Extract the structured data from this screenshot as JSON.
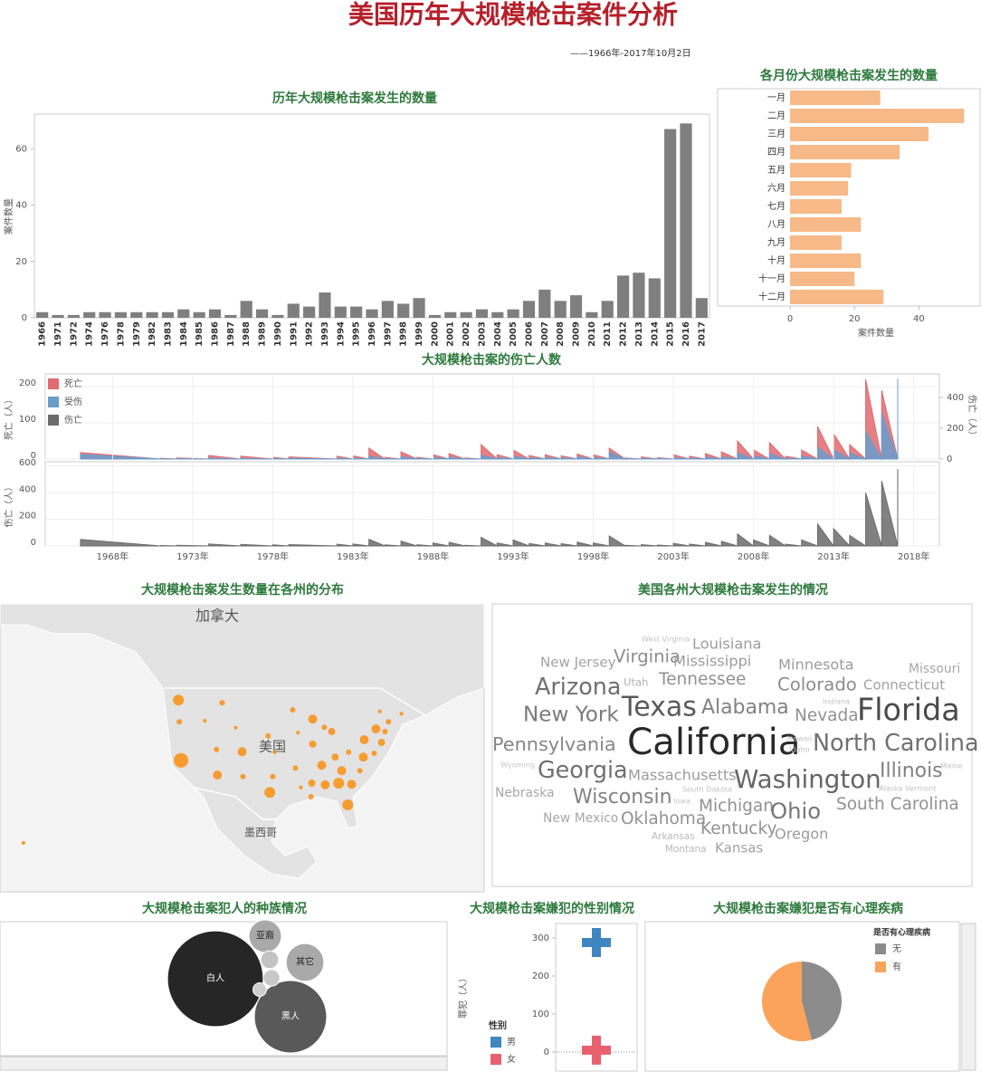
{
  "title": "美国历年大规模枪击案件分析",
  "subtitle": "——1966年-2017年10月2日",
  "chart_data": [
    {
      "type": "bar",
      "title": "历年大规模枪击案发生的数量",
      "ylabel": "案件数量",
      "color": "#7f7f7f",
      "categories": [
        "1966",
        "1971",
        "1972",
        "1974",
        "1976",
        "1978",
        "1979",
        "1982",
        "1983",
        "1984",
        "1985",
        "1986",
        "1987",
        "1988",
        "1989",
        "1990",
        "1991",
        "1992",
        "1993",
        "1994",
        "1995",
        "1996",
        "1997",
        "1998",
        "1999",
        "2000",
        "2001",
        "2002",
        "2003",
        "2004",
        "2005",
        "2006",
        "2007",
        "2008",
        "2009",
        "2010",
        "2011",
        "2012",
        "2013",
        "2014",
        "2015",
        "2016",
        "2017"
      ],
      "values": [
        2,
        1,
        1,
        2,
        2,
        2,
        2,
        2,
        2,
        3,
        2,
        3,
        1,
        6,
        3,
        1,
        5,
        4,
        9,
        4,
        4,
        3,
        6,
        5,
        7,
        1,
        2,
        2,
        3,
        2,
        3,
        6,
        10,
        6,
        8,
        2,
        6,
        15,
        16,
        14,
        67,
        69,
        7
      ],
      "ylim": [
        0,
        72
      ],
      "yticks": [
        0,
        20,
        40,
        60
      ]
    },
    {
      "type": "hbar",
      "title": "各月份大规模枪击案发生的数量",
      "xlabel": "案件数量",
      "color": "#f6b987",
      "categories": [
        "一月",
        "二月",
        "三月",
        "四月",
        "五月",
        "六月",
        "七月",
        "八月",
        "九月",
        "十月",
        "十一月",
        "十二月"
      ],
      "values": [
        28,
        54,
        43,
        34,
        19,
        18,
        16,
        22,
        16,
        22,
        20,
        29
      ],
      "xlim": [
        0,
        59
      ],
      "xticks": [
        0,
        20,
        40
      ]
    },
    {
      "type": "area",
      "title": "大规模枪击案的伤亡人数",
      "ylabel": "死亡（人）",
      "y2label": "伤亡（人）",
      "grid": true,
      "x": [
        1966,
        1971,
        1972,
        1974,
        1976,
        1978,
        1979,
        1982,
        1983,
        1984,
        1985,
        1986,
        1987,
        1988,
        1989,
        1990,
        1991,
        1992,
        1993,
        1994,
        1995,
        1996,
        1997,
        1998,
        1999,
        2000,
        2001,
        2002,
        2003,
        2004,
        2005,
        2006,
        2007,
        2008,
        2009,
        2010,
        2011,
        2012,
        2013,
        2014,
        2015,
        2016,
        2017
      ],
      "series": [
        {
          "name": "死亡",
          "color": "#e06a6f",
          "values": [
            18,
            2,
            3,
            10,
            8,
            5,
            6,
            8,
            9,
            30,
            5,
            20,
            5,
            12,
            15,
            3,
            40,
            12,
            25,
            10,
            12,
            9,
            14,
            12,
            30,
            3,
            6,
            4,
            12,
            8,
            15,
            20,
            50,
            25,
            45,
            8,
            25,
            90,
            70,
            40,
            220,
            190,
            60
          ]
        },
        {
          "name": "受伤",
          "color": "#6a9ccc",
          "axis": "y2",
          "values": [
            31,
            1,
            2,
            5,
            4,
            3,
            4,
            5,
            6,
            20,
            3,
            16,
            4,
            10,
            12,
            2,
            25,
            10,
            20,
            8,
            10,
            8,
            15,
            10,
            45,
            2,
            4,
            3,
            8,
            6,
            12,
            15,
            40,
            20,
            35,
            5,
            20,
            75,
            60,
            40,
            180,
            300,
            520
          ]
        }
      ],
      "xlim": [
        1963.8,
        2019.6
      ],
      "ylim": [
        0,
        230
      ],
      "yticks": [
        0,
        100,
        200
      ],
      "y2lim": [
        0,
        540
      ],
      "y2ticks": [
        0,
        200,
        400
      ]
    },
    {
      "type": "area",
      "ylabel": "伤亡（人）",
      "grid": true,
      "x": [
        1966,
        1971,
        1972,
        1974,
        1976,
        1978,
        1979,
        1982,
        1983,
        1984,
        1985,
        1986,
        1987,
        1988,
        1989,
        1990,
        1991,
        1992,
        1993,
        1994,
        1995,
        1996,
        1997,
        1998,
        1999,
        2000,
        2001,
        2002,
        2003,
        2004,
        2005,
        2006,
        2007,
        2008,
        2009,
        2010,
        2011,
        2012,
        2013,
        2014,
        2015,
        2016,
        2017
      ],
      "series": [
        {
          "name": "伤亡",
          "color": "#6b6b6b",
          "values": [
            49,
            3,
            5,
            15,
            12,
            8,
            10,
            13,
            15,
            50,
            8,
            36,
            9,
            22,
            27,
            5,
            65,
            22,
            45,
            18,
            22,
            17,
            29,
            22,
            75,
            5,
            10,
            7,
            20,
            14,
            27,
            35,
            90,
            45,
            80,
            13,
            45,
            165,
            130,
            80,
            400,
            490,
            580
          ]
        }
      ],
      "xlim": [
        1963.8,
        2019.6
      ],
      "ylim": [
        0,
        620
      ],
      "yticks": [
        0,
        200,
        400,
        600
      ],
      "xticks": [
        {
          "value": 1968,
          "label": "1968年"
        },
        {
          "value": 1973,
          "label": "1973年"
        },
        {
          "value": 1978,
          "label": "1978年"
        },
        {
          "value": 1983,
          "label": "1983年"
        },
        {
          "value": 1988,
          "label": "1988年"
        },
        {
          "value": 1993,
          "label": "1993年"
        },
        {
          "value": 1998,
          "label": "1998年"
        },
        {
          "value": 2003,
          "label": "2003年"
        },
        {
          "value": 2008,
          "label": "2008年"
        },
        {
          "value": 2013,
          "label": "2013年"
        },
        {
          "value": 2018,
          "label": "2018年"
        }
      ]
    },
    {
      "type": "bubble_map",
      "title": "大规模枪击案发生数量在各州的分布",
      "color": "#f7941d",
      "labels": [
        "加拿大",
        "美国",
        "墨西哥"
      ],
      "xlim": [
        -160.8,
        -49
      ],
      "ylim": [
        11.8,
        64.8
      ],
      "lon": [
        -119.6,
        -119.4,
        -119.0,
        -113.5,
        -109.5,
        -106.4,
        -110.8,
        -104.9,
        -110.6,
        -104.7,
        -98.5,
        -98.9,
        -97.4,
        -97.8,
        -93.2,
        -92.0,
        -88.6,
        -92.6,
        -91.3,
        -88.6,
        -86.5,
        -84.2,
        -83.4,
        -81.9,
        -80.3,
        -79.6,
        -82.6,
        -85.7,
        -88.8,
        -89.0,
        -76.9,
        -76.7,
        -77.7,
        -74.0,
        -74.4,
        -71.9,
        -72.7,
        -71.1,
        -68.1,
        -73.1,
        -80.5,
        -85.9,
        -155.4
      ],
      "lat": [
        47.1,
        43.1,
        36.0,
        43.3,
        46.6,
        42.0,
        38.0,
        37.6,
        33.3,
        33.0,
        30.1,
        40.5,
        37.5,
        33.0,
        45.3,
        41.1,
        43.6,
        34.6,
        31.0,
        39.0,
        35.1,
        41.3,
        36.6,
        34.1,
        37.5,
        31.6,
        31.8,
        31.5,
        31.8,
        29.3,
        36.6,
        39.8,
        34.1,
        41.8,
        37.3,
        41.3,
        39.3,
        43.1,
        44.6,
        45.0,
        27.8,
        42.1,
        20.8
      ],
      "values": [
        16,
        4,
        29,
        2,
        4,
        2,
        4,
        11,
        11,
        4,
        16,
        4,
        2,
        4,
        4,
        2,
        11,
        4,
        2,
        7,
        11,
        7,
        7,
        11,
        4,
        11,
        16,
        11,
        7,
        4,
        11,
        11,
        4,
        11,
        4,
        4,
        7,
        4,
        2,
        2,
        16,
        4,
        2
      ]
    },
    {
      "type": "wordcloud",
      "title": "美国各州大规模枪击案发生的情况",
      "words": [
        "West Virginia",
        "Louisiana",
        "New Jersey",
        "Virginia",
        "Mississippi",
        "Minnesota",
        "Missouri",
        "Utah",
        "Tennessee",
        "Colorado",
        "Connecticut",
        "Arizona",
        "Indiana",
        "Texas",
        "Alabama",
        "New York",
        "Nevada",
        "Florida",
        "Pennsylvania",
        "California",
        "Hawaii",
        "Idaho",
        "North Carolina",
        "Wyoming",
        "Georgia",
        "Massachusetts",
        "Washington",
        "Illinois",
        "Maine",
        "South Dakota",
        "Alaska",
        "Vermont",
        "Nebraska",
        "Wisconsin",
        "Iowa",
        "Michigan",
        "Ohio",
        "South Carolina",
        "New Mexico",
        "Oklahoma",
        "Kentucky",
        "Oregon",
        "Arkansas",
        "Montana",
        "Kansas"
      ],
      "values": [
        1,
        8,
        7,
        11,
        8,
        8,
        6,
        4,
        10,
        11,
        7,
        16,
        1,
        20,
        13,
        14,
        10,
        23,
        12,
        29,
        1,
        1,
        16,
        1,
        16,
        8,
        18,
        13,
        1,
        1,
        1,
        1,
        6,
        13,
        1,
        10,
        15,
        10,
        6,
        10,
        10,
        8,
        3,
        3,
        7
      ]
    },
    {
      "type": "packed_bubble",
      "title": "大规模枪击案犯人的种族情况",
      "categories": [
        "白人",
        "黑人",
        "亚裔",
        "其它",
        null,
        null,
        null
      ],
      "values": [
        200,
        114,
        23,
        31,
        7,
        6,
        4
      ],
      "colors": [
        "#262626",
        "#595959",
        "#a9a9a9",
        "#a9a9a9",
        "#c3c3c3",
        "#c8c8c8",
        "#cdcdcd"
      ]
    },
    {
      "type": "point",
      "title": "大规模枪击案嫌犯的性别情况",
      "ylabel": "罪犯（人）",
      "legend_title": "性别",
      "categories": [
        "男",
        "女"
      ],
      "values": [
        288,
        5
      ],
      "colors": [
        "#3e86bf",
        "#e8606d"
      ],
      "ylim": [
        -50,
        338
      ],
      "yticks": [
        0,
        100,
        200,
        300
      ]
    },
    {
      "type": "pie",
      "title": "大规模枪击案嫌犯是否有心理疾病",
      "legend_title": "是否有心理疾病",
      "categories": [
        "无",
        "有"
      ],
      "values": [
        46,
        54
      ],
      "colors": [
        "#8c8c8c",
        "#fba35a"
      ]
    }
  ]
}
